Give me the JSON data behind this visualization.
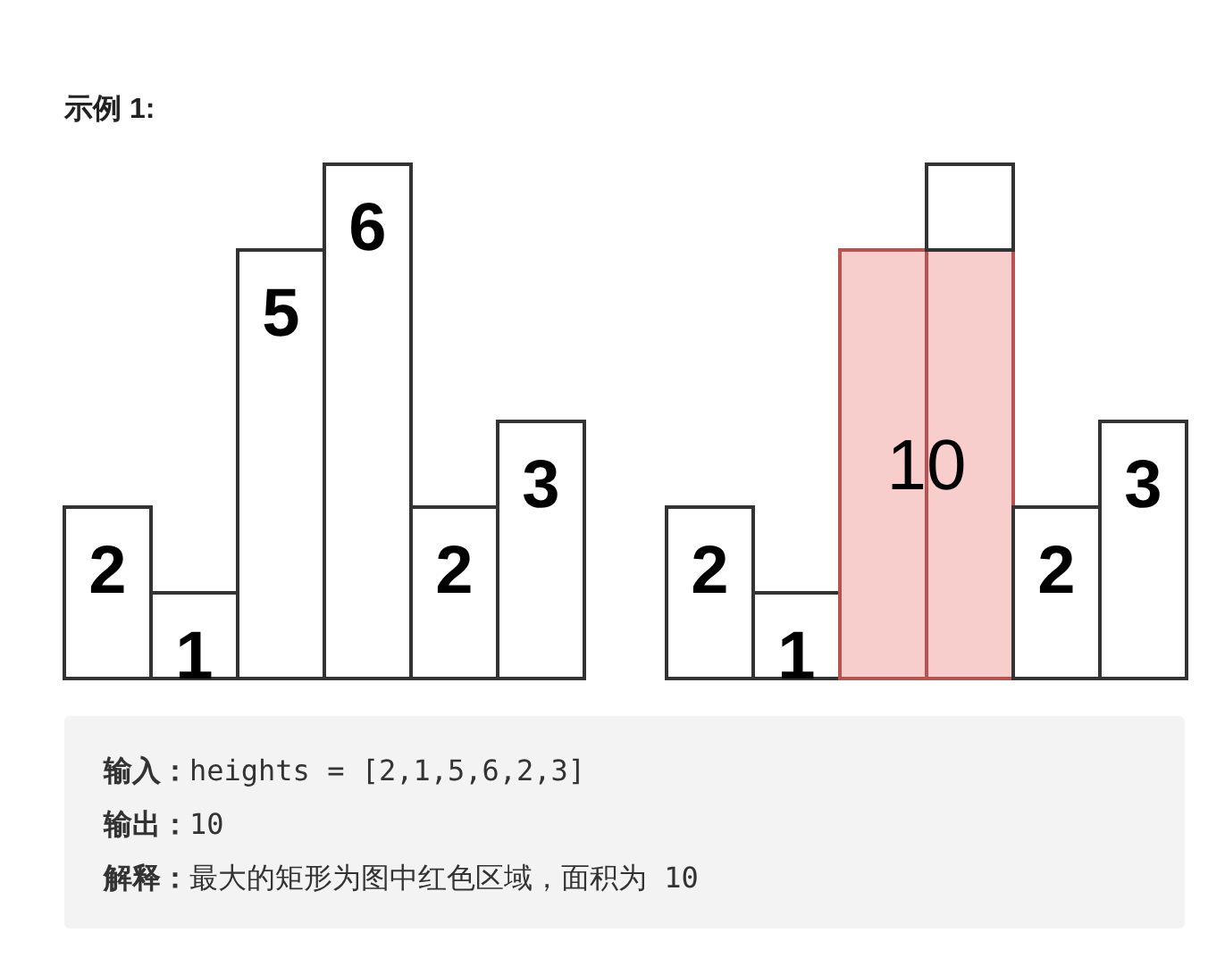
{
  "chart_data": [
    {
      "type": "bar",
      "title": "示例 1:",
      "categories": [
        null,
        null,
        null,
        null,
        null,
        null
      ],
      "values": [
        2,
        1,
        5,
        6,
        2,
        3
      ],
      "color": "#ffffff",
      "data_labels": true
    },
    {
      "type": "bar",
      "categories": [
        null,
        null,
        null,
        null,
        null,
        null
      ],
      "stacked": true,
      "annotations": [
        {
          "text": "10",
          "y": 2.5
        }
      ],
      "series": [
        {
          "color": "#ffffff",
          "colors": [
            "#ffffff",
            "#ffffff",
            "#f8cecc",
            "#f8cecc",
            "#ffffff",
            "#ffffff"
          ],
          "values": [
            2,
            1,
            5,
            5,
            2,
            3
          ],
          "value_labels": [
            "2",
            "1",
            null,
            null,
            "2",
            "3"
          ]
        },
        {
          "color": "#ffffff",
          "values": [
            0,
            0,
            0,
            1,
            0,
            0
          ]
        }
      ]
    },
    {
      "type": "other",
      "annotations": [
        "输入：heights = [2,1,5,6,2,3]",
        "输出：10",
        "解释：最大的矩形为图中红色区域，面积为 10"
      ]
    }
  ]
}
